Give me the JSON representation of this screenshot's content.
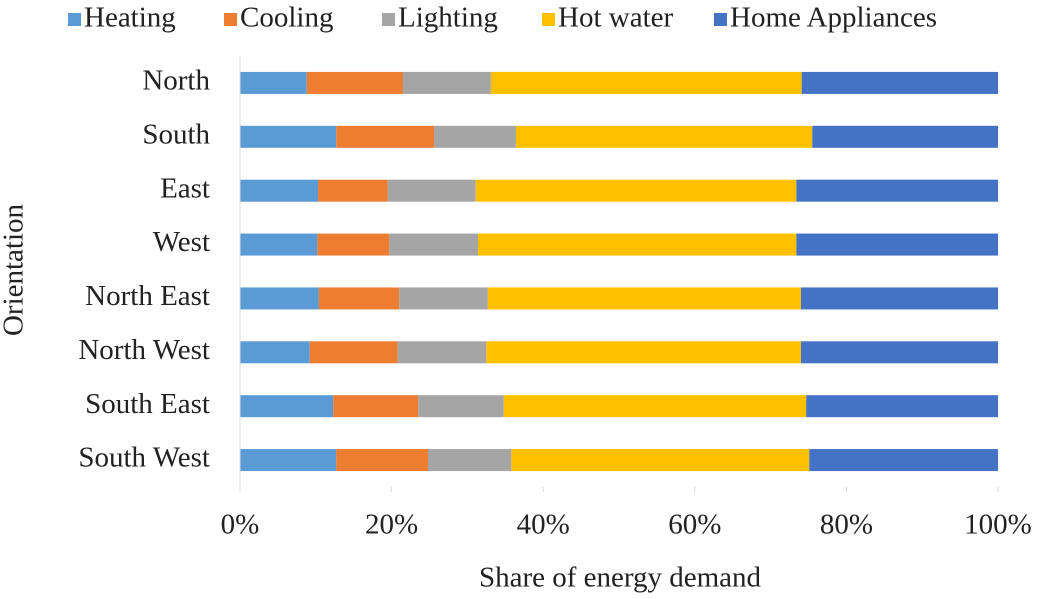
{
  "chart_data": {
    "type": "bar",
    "orientation": "horizontal",
    "stacked": true,
    "categories": [
      "North",
      "South",
      "East",
      "West",
      "North East",
      "North West",
      "South East",
      "South West"
    ],
    "series": [
      {
        "name": "Heating",
        "color": "#5b9bd5",
        "values": [
          8.8,
          12.7,
          10.3,
          10.2,
          10.4,
          9.2,
          12.3,
          12.7
        ]
      },
      {
        "name": "Cooling",
        "color": "#ed7d31",
        "values": [
          12.7,
          12.9,
          9.2,
          9.5,
          10.6,
          11.6,
          11.2,
          12.1
        ]
      },
      {
        "name": "Lighting",
        "color": "#a5a5a5",
        "values": [
          11.6,
          10.8,
          11.6,
          11.7,
          11.7,
          11.7,
          11.3,
          11.0
        ]
      },
      {
        "name": "Hot water",
        "color": "#ffc000",
        "values": [
          41.0,
          39.1,
          42.3,
          42.0,
          41.3,
          41.5,
          39.9,
          39.3
        ]
      },
      {
        "name": "Home Appliances",
        "color": "#4472c4",
        "values": [
          25.9,
          24.5,
          26.6,
          26.6,
          26.0,
          26.0,
          25.3,
          24.9
        ]
      }
    ],
    "xlabel": "Share of energy demand",
    "ylabel": "Orientation",
    "xlim": [
      0,
      100
    ],
    "xticks": [
      {
        "value": 0,
        "label": "0%"
      },
      {
        "value": 20,
        "label": "20%"
      },
      {
        "value": 40,
        "label": "40%"
      },
      {
        "value": 60,
        "label": "60%"
      },
      {
        "value": 80,
        "label": "80%"
      },
      {
        "value": 100,
        "label": "100%"
      }
    ],
    "legend": "top",
    "grid": false
  }
}
